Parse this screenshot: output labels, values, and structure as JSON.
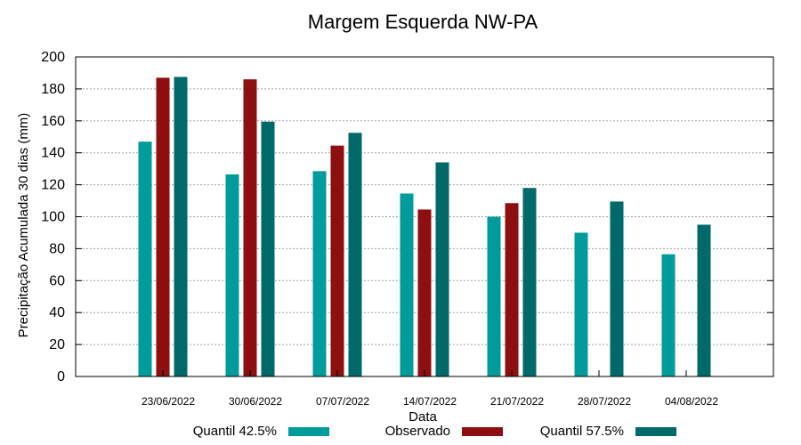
{
  "chart_data": {
    "type": "bar",
    "title": "Margem Esquerda NW-PA",
    "xlabel": "Data",
    "ylabel": "Precipitação Acumulada 30 dias (mm)",
    "ylim": [
      0,
      200
    ],
    "yticks": [
      0,
      20,
      40,
      60,
      80,
      100,
      120,
      140,
      160,
      180,
      200
    ],
    "grid": true,
    "legend_position": "bottom",
    "categories": [
      "23/06/2022",
      "30/06/2022",
      "07/07/2022",
      "14/07/2022",
      "21/07/2022",
      "28/07/2022",
      "04/08/2022"
    ],
    "series": [
      {
        "name": "Quantil 42.5%",
        "color": "#009B9B",
        "values": [
          147,
          126.5,
          128.5,
          114.5,
          100,
          90,
          76.5
        ]
      },
      {
        "name": "Observado",
        "color": "#8E0F0F",
        "values": [
          187,
          186,
          144.5,
          104.5,
          108.5,
          null,
          null
        ]
      },
      {
        "name": "Quantil 57.5%",
        "color": "#006A6A",
        "values": [
          187.5,
          159.5,
          152.5,
          134,
          118,
          109.5,
          95
        ]
      }
    ]
  }
}
